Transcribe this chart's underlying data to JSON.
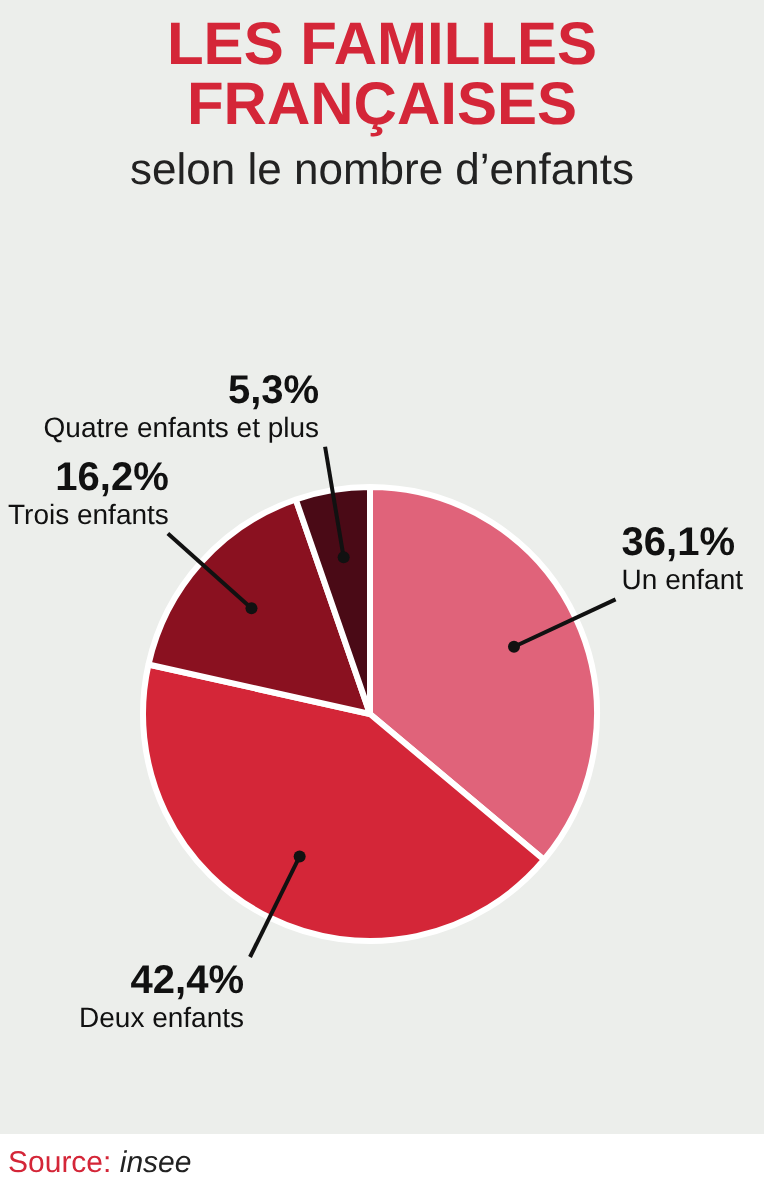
{
  "chart_data": {
    "type": "pie",
    "title": "LES FAMILLES FRANÇAISES",
    "subtitle": "selon le nombre d’enfants",
    "categories": [
      "Un enfant",
      "Deux enfants",
      "Trois enfants",
      "Quatre enfants et plus"
    ],
    "values": [
      36.1,
      42.4,
      16.2,
      5.3
    ],
    "value_labels": [
      "36,1%",
      "42,4%",
      "16,2%",
      "5,3%"
    ],
    "colors": [
      "#e0637a",
      "#d42638",
      "#8a1120",
      "#4a0a16"
    ],
    "legend": false,
    "annotations": [
      "Source: insee"
    ]
  }
}
